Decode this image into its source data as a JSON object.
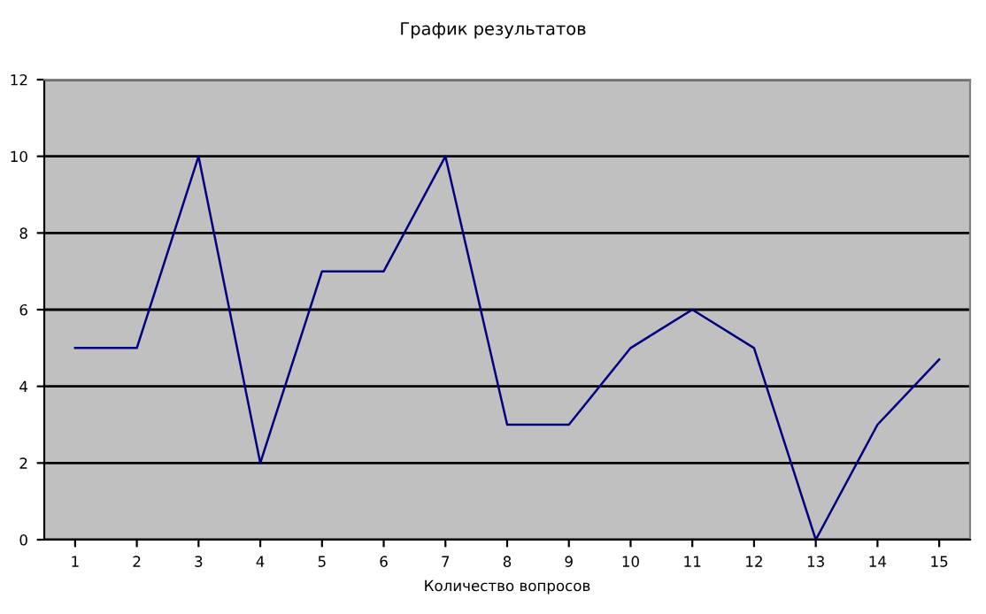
{
  "chart_data": {
    "type": "line",
    "title": "График результатов",
    "xlabel": "Количество вопросов",
    "categories": [
      "1",
      "2",
      "3",
      "4",
      "5",
      "6",
      "7",
      "8",
      "9",
      "10",
      "11",
      "12",
      "13",
      "14",
      "15"
    ],
    "series": [
      {
        "color": "#000080",
        "values": [
          5,
          5,
          10,
          2,
          7,
          7,
          10,
          3,
          3,
          5,
          6,
          5,
          0,
          3,
          4.7
        ]
      }
    ],
    "ylim": [
      0,
      12
    ],
    "yticks": [
      0,
      2,
      4,
      6,
      8,
      10,
      12
    ],
    "grid": "y",
    "marker": "none",
    "line_style": "solid",
    "legend": false
  }
}
